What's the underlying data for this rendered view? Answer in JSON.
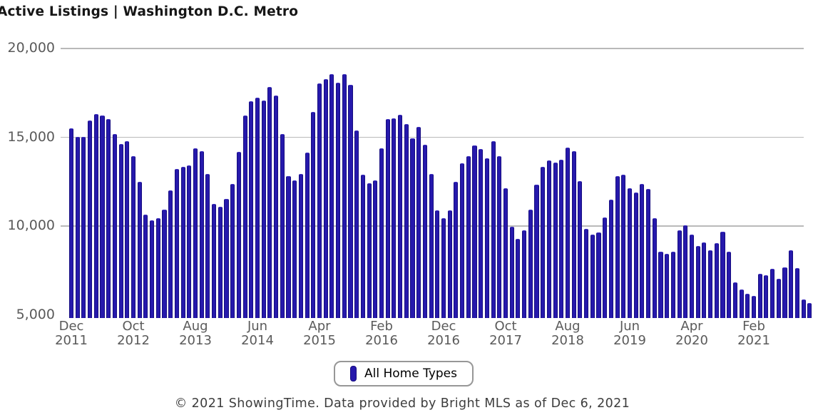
{
  "colors": {
    "bar_fill": "#2619ac",
    "bar_edge": "#150b80",
    "bar_top": "#3a2cc0",
    "gridline": "#b9b9b9",
    "axis_text": "#5a5a5a",
    "title_text": "#161616",
    "footer_text": "#3d3d3d"
  },
  "footer": {
    "text": "© 2021 ShowingTime. Data provided by Bright MLS as of Dec 6, 2021"
  },
  "chart_data": {
    "type": "bar",
    "title": "Active Listings | Washington D.C. Metro",
    "series_name": "All Home Types",
    "x_start": "Dec 2011",
    "x_end": "Nov 2021",
    "x_frequency": "monthly",
    "ylim": [
      5000,
      20000
    ],
    "grid": "horizontal",
    "legend_position": "bottom-center",
    "y_axis": {
      "ticks": [
        {
          "label": "20,000",
          "value": 20000,
          "gridline": true
        },
        {
          "label": "15,000",
          "value": 15000,
          "gridline": true
        },
        {
          "label": "10,000",
          "value": 10000,
          "gridline": true
        },
        {
          "label": "5,000",
          "value": 5000,
          "gridline": false
        }
      ]
    },
    "x_axis": {
      "ticks": [
        {
          "month": "Dec",
          "year": "2011",
          "index": 0
        },
        {
          "month": "Oct",
          "year": "2012",
          "index": 10
        },
        {
          "month": "Aug",
          "year": "2013",
          "index": 20
        },
        {
          "month": "Jun",
          "year": "2014",
          "index": 30
        },
        {
          "month": "Apr",
          "year": "2015",
          "index": 40
        },
        {
          "month": "Feb",
          "year": "2016",
          "index": 50
        },
        {
          "month": "Dec",
          "year": "2016",
          "index": 60
        },
        {
          "month": "Oct",
          "year": "2017",
          "index": 70
        },
        {
          "month": "Aug",
          "year": "2018",
          "index": 80
        },
        {
          "month": "Jun",
          "year": "2019",
          "index": 90
        },
        {
          "month": "Apr",
          "year": "2020",
          "index": 100
        },
        {
          "month": "Feb",
          "year": "2021",
          "index": 110
        }
      ]
    },
    "values": [
      15450,
      15000,
      15000,
      15900,
      16270,
      16200,
      16000,
      15130,
      14600,
      14730,
      13900,
      12450,
      10600,
      10300,
      10400,
      10900,
      12000,
      13200,
      13320,
      13400,
      14350,
      14200,
      12900,
      11200,
      11050,
      11500,
      12350,
      14150,
      16200,
      17000,
      17200,
      17050,
      17800,
      17300,
      15150,
      12800,
      12550,
      12900,
      14100,
      16400,
      18000,
      18250,
      18500,
      18050,
      18500,
      17900,
      15350,
      12850,
      12400,
      12550,
      14350,
      16000,
      16050,
      16250,
      15700,
      14900,
      15550,
      14550,
      12900,
      10850,
      10400,
      10850,
      12450,
      13500,
      13900,
      14500,
      14300,
      13800,
      14750,
      13900,
      12100,
      9950,
      9250,
      9750,
      10900,
      12300,
      13300,
      13650,
      13550,
      13700,
      14400,
      14200,
      12500,
      9800,
      9500,
      9600,
      10450,
      11450,
      12800,
      12850,
      12100,
      11850,
      12350,
      12050,
      10400,
      8550,
      8400,
      8550,
      9750,
      10000,
      9500,
      8850,
      9050,
      8600,
      9000,
      9650,
      8550,
      6800,
      6400,
      6150,
      6050,
      7300,
      7200,
      7550,
      7000,
      7650,
      8600,
      7600,
      5850,
      5650
    ]
  }
}
